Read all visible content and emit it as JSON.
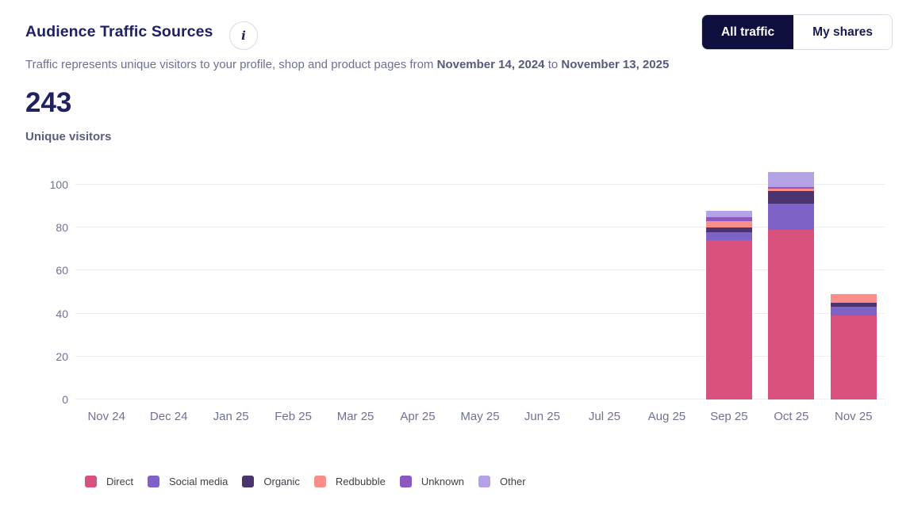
{
  "header": {
    "title": "Audience Traffic Sources",
    "info_icon": "i",
    "toggle": {
      "all_traffic": "All traffic",
      "my_shares": "My shares"
    }
  },
  "subtitle": {
    "prefix": "Traffic represents unique visitors to your profile, shop and product pages from ",
    "start_date": "November 14, 2024",
    "connector": " to ",
    "end_date": "November 13, 2025"
  },
  "metric": {
    "value": "243",
    "label": "Unique visitors"
  },
  "chart_data": {
    "type": "bar",
    "stacked": true,
    "title": "Audience Traffic Sources",
    "categories": [
      "Nov 24",
      "Dec 24",
      "Jan 25",
      "Feb 25",
      "Mar 25",
      "Apr 25",
      "May 25",
      "Jun 25",
      "Jul 25",
      "Aug 25",
      "Sep 25",
      "Oct 25",
      "Nov 25"
    ],
    "series": [
      {
        "name": "Direct",
        "color": "#d9527e",
        "values": [
          0,
          0,
          0,
          0,
          0,
          0,
          0,
          0,
          0,
          0,
          74,
          79,
          39
        ]
      },
      {
        "name": "Social media",
        "color": "#7e63c6",
        "values": [
          0,
          0,
          0,
          0,
          0,
          0,
          0,
          0,
          0,
          0,
          4,
          12,
          4
        ]
      },
      {
        "name": "Organic",
        "color": "#4b3470",
        "values": [
          0,
          0,
          0,
          0,
          0,
          0,
          0,
          0,
          0,
          0,
          2,
          6,
          2
        ]
      },
      {
        "name": "Redbubble",
        "color": "#fb8e88",
        "values": [
          0,
          0,
          0,
          0,
          0,
          0,
          0,
          0,
          0,
          0,
          3,
          1,
          4
        ]
      },
      {
        "name": "Unknown",
        "color": "#8b59be",
        "values": [
          0,
          0,
          0,
          0,
          0,
          0,
          0,
          0,
          0,
          0,
          2,
          1,
          0
        ]
      },
      {
        "name": "Other",
        "color": "#b5a1e5",
        "values": [
          0,
          0,
          0,
          0,
          0,
          0,
          0,
          0,
          0,
          0,
          3,
          7,
          0
        ]
      }
    ],
    "totals": {
      "Sep 25": 88,
      "Oct 25": 106,
      "Nov 25": 49
    },
    "xlabel": "",
    "ylabel": "",
    "yticks": [
      0,
      20,
      40,
      60,
      80,
      100
    ],
    "ylim": [
      0,
      100
    ],
    "grid": true,
    "legend_position": "bottom"
  }
}
